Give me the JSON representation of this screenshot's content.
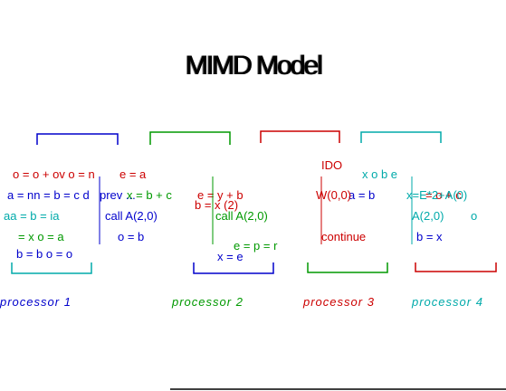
{
  "title": "MIMD Model",
  "colors": {
    "blue": "#0000cc",
    "green": "#009900",
    "red": "#cc0000",
    "cyan": "#00aaaa"
  },
  "streams": [
    {
      "color": "#0000cc",
      "lines": [
        "call A(2,0)",
        "prev ..."
      ],
      "processor": "processor 1"
    },
    {
      "color": "#009900",
      "lines": [
        "call A(2,0)"
      ],
      "processor": "processor 2"
    },
    {
      "color": "#cc0000",
      "lines": [
        "IDO",
        "W(0,0)",
        "continue"
      ],
      "processor": "processor 3"
    },
    {
      "color": "#00aaaa",
      "lines": [
        "A(2,0)",
        "x=E*2+A(0)"
      ],
      "processor": "processor 4"
    }
  ]
}
